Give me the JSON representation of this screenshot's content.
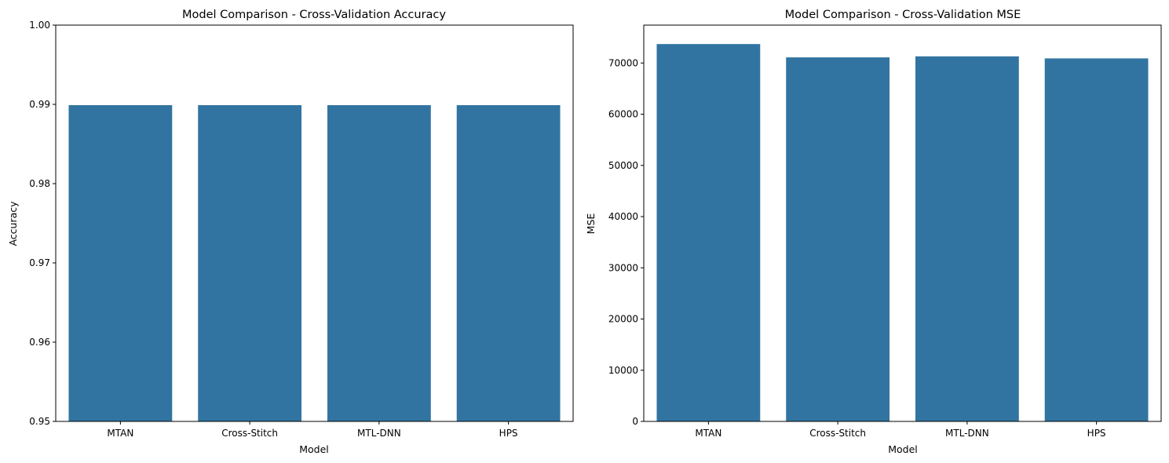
{
  "colors": {
    "bar": "#3274a1",
    "axis": "#000000",
    "background": "#ffffff"
  },
  "chart_data": [
    {
      "type": "bar",
      "title": "Model Comparison - Cross-Validation Accuracy",
      "xlabel": "Model",
      "ylabel": "Accuracy",
      "categories": [
        "MTAN",
        "Cross-Stitch",
        "MTL-DNN",
        "HPS"
      ],
      "values": [
        0.9899,
        0.9899,
        0.9899,
        0.9899
      ],
      "ylim": [
        0.95,
        1.0
      ],
      "yticks": [
        0.95,
        0.96,
        0.97,
        0.98,
        0.99,
        1.0
      ],
      "ytick_labels": [
        "0.95",
        "0.96",
        "0.97",
        "0.98",
        "0.99",
        "1.00"
      ],
      "grid": false,
      "legend": "none"
    },
    {
      "type": "bar",
      "title": "Model Comparison - Cross-Validation MSE",
      "xlabel": "Model",
      "ylabel": "MSE",
      "categories": [
        "MTAN",
        "Cross-Stitch",
        "MTL-DNN",
        "HPS"
      ],
      "values": [
        73700,
        71100,
        71300,
        70900
      ],
      "ylim": [
        0,
        77400
      ],
      "yticks": [
        0,
        10000,
        20000,
        30000,
        40000,
        50000,
        60000,
        70000
      ],
      "ytick_labels": [
        "0",
        "10000",
        "20000",
        "30000",
        "40000",
        "50000",
        "60000",
        "70000"
      ],
      "grid": false,
      "legend": "none"
    }
  ]
}
